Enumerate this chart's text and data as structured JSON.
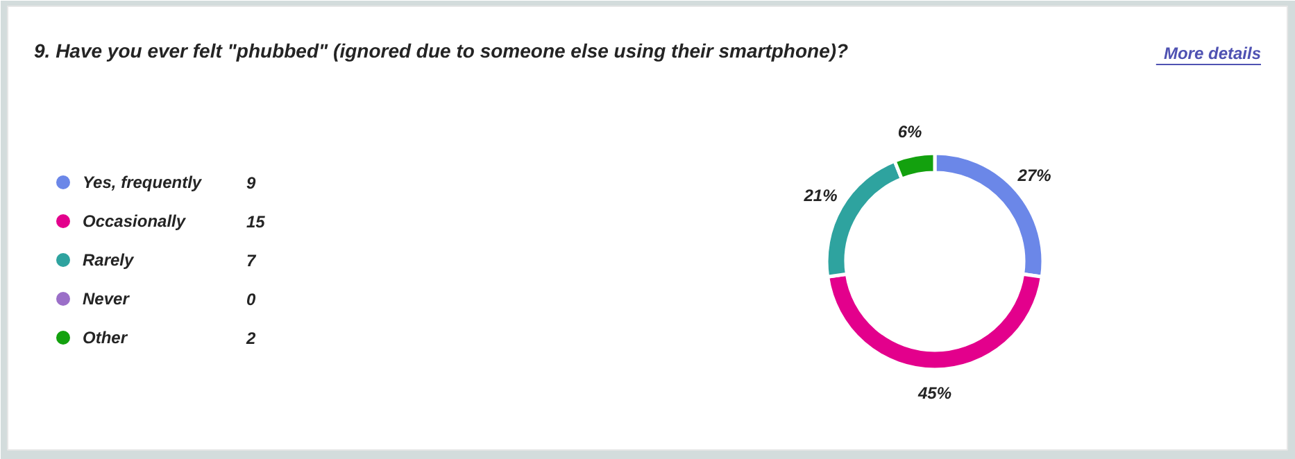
{
  "chart_data": {
    "type": "donut",
    "title": "9. Have you ever felt \"phubbed\" (ignored due to someone else using their smartphone)?",
    "categories": [
      "Yes, frequently",
      "Occasionally",
      "Rarely",
      "Never",
      "Other"
    ],
    "values": [
      27,
      45,
      21,
      0,
      6
    ],
    "colors": [
      "#6b87e8",
      "#e3008c",
      "#2ea39f",
      "#9b6fc8",
      "#13a10e"
    ],
    "value_labels": [
      "27%",
      "45%",
      "21%",
      null,
      "6%"
    ],
    "legend": "left",
    "annotations": [
      "More details",
      "9",
      "15",
      "7",
      "0",
      "2"
    ]
  }
}
